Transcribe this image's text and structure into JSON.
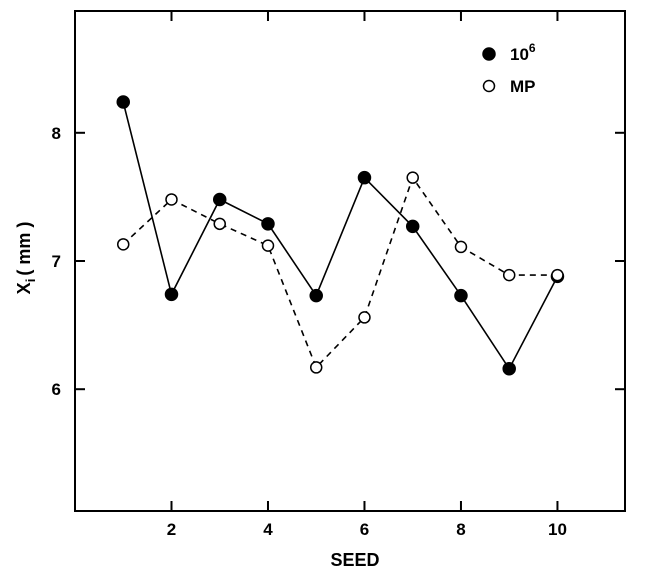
{
  "chart_data": {
    "type": "line",
    "xlabel": "SEED",
    "ylabel": "X",
    "ylabel_subscript": "i",
    "ylabel_unit": "( mm )",
    "x": [
      1,
      2,
      3,
      4,
      5,
      6,
      7,
      8,
      9,
      10
    ],
    "xlim": [
      0,
      11.4
    ],
    "ylim": [
      5.05,
      8.95
    ],
    "x_ticks": [
      2,
      4,
      6,
      8,
      10
    ],
    "x_tick_labels": [
      "2",
      "4",
      "6",
      "8",
      "10"
    ],
    "y_ticks": [
      6,
      7,
      8
    ],
    "y_tick_labels": [
      "6",
      "7",
      "8"
    ],
    "grid": false,
    "legend_position": "top-right",
    "series": [
      {
        "name": "10",
        "name_superscript": "6",
        "marker": "filled-circle",
        "line_style": "solid",
        "color": "#000000",
        "values": [
          8.24,
          6.74,
          7.48,
          7.29,
          6.73,
          7.65,
          7.27,
          6.73,
          6.16,
          6.88
        ]
      },
      {
        "name": "MP",
        "marker": "open-circle",
        "line_style": "dashed",
        "color": "#000000",
        "values": [
          7.13,
          7.48,
          7.29,
          7.12,
          6.17,
          6.56,
          7.65,
          7.11,
          6.89,
          6.89
        ]
      }
    ]
  }
}
